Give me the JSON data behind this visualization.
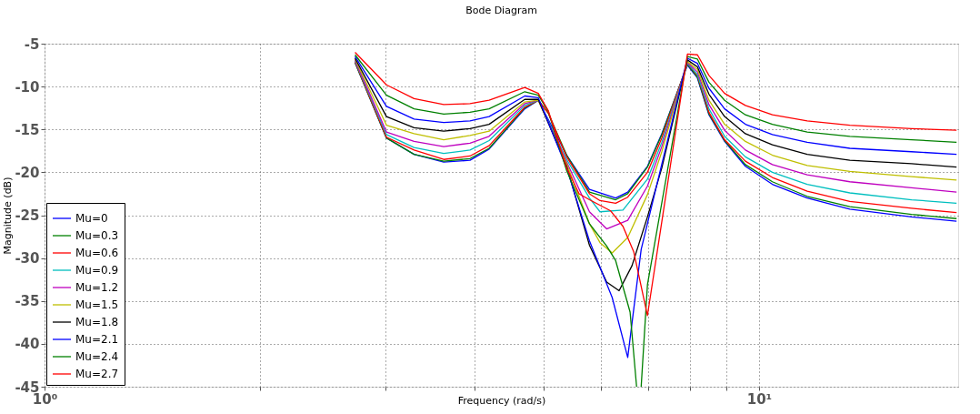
{
  "chart_data": {
    "type": "line",
    "title": "Bode Diagram",
    "xlabel": "Frequency  (rad/s)",
    "ylabel": "Magnitude (dB)",
    "log": "x",
    "grid": true,
    "legend": "bottom left",
    "line_style": "solid",
    "marker": "none",
    "xlim": [
      1,
      19
    ],
    "ylim": [
      -45,
      -5
    ],
    "xticks": [
      {
        "value": 1,
        "label": "10⁰"
      },
      {
        "value": 2,
        "label": null
      },
      {
        "value": 3,
        "label": null
      },
      {
        "value": 4,
        "label": null
      },
      {
        "value": 5,
        "label": null
      },
      {
        "value": 6,
        "label": null
      },
      {
        "value": 7,
        "label": null
      },
      {
        "value": 8,
        "label": null
      },
      {
        "value": 9,
        "label": null
      },
      {
        "value": 10,
        "label": "10¹"
      }
    ],
    "yticks": [
      -45,
      -40,
      -35,
      -30,
      -25,
      -20,
      -15,
      -10,
      -5
    ],
    "series": [
      {
        "name": "Mu=0",
        "color": "#0000ff",
        "x": [
          2.72,
          3.01,
          3.29,
          3.62,
          3.94,
          4.19,
          4.7,
          4.91,
          5.38,
          5.79,
          6.3,
          6.55,
          6.98,
          7.31,
          7.94,
          8.2,
          8.51,
          8.95,
          9.57,
          10.44,
          11.68,
          13.4,
          16.35,
          18.9
        ],
        "values": [
          -7.2,
          -16.0,
          -17.9,
          -18.8,
          -18.6,
          -17.3,
          -12.6,
          -11.6,
          -18.0,
          -22.0,
          -23.0,
          -22.3,
          -19.3,
          -15.5,
          -7.5,
          -9.0,
          -13.3,
          -16.4,
          -19.3,
          -21.4,
          -23.0,
          -24.3,
          -25.2,
          -25.7
        ]
      },
      {
        "name": "Mu=0.3",
        "color": "#008000",
        "x": [
          2.72,
          3.01,
          3.29,
          3.62,
          3.94,
          4.19,
          4.7,
          4.91,
          5.07,
          5.38,
          5.79,
          6.3,
          6.55,
          6.98,
          7.31,
          7.94,
          8.2,
          8.51,
          8.95,
          9.57,
          10.44,
          11.68,
          13.4,
          16.35,
          18.9
        ],
        "values": [
          -7.2,
          -16.0,
          -17.9,
          -18.7,
          -18.4,
          -17.2,
          -12.5,
          -11.6,
          -13.1,
          -18.0,
          -22.3,
          -23.2,
          -22.5,
          -19.4,
          -15.6,
          -7.4,
          -8.9,
          -13.2,
          -16.3,
          -19.1,
          -21.1,
          -22.8,
          -24.0,
          -24.9,
          -25.4
        ]
      },
      {
        "name": "Mu=0.6",
        "color": "#ff0000",
        "x": [
          2.72,
          3.01,
          3.29,
          3.62,
          3.94,
          4.19,
          4.7,
          4.91,
          5.07,
          5.38,
          5.79,
          5.99,
          6.3,
          6.55,
          6.98,
          7.31,
          7.94,
          8.2,
          8.51,
          8.95,
          9.57,
          10.44,
          11.68,
          13.4,
          16.35,
          18.9
        ],
        "values": [
          -7.1,
          -15.9,
          -17.4,
          -18.5,
          -18.1,
          -16.9,
          -12.4,
          -11.6,
          -13.1,
          -18.2,
          -22.5,
          -23.3,
          -23.6,
          -22.9,
          -20.0,
          -16.0,
          -7.3,
          -8.7,
          -13.0,
          -16.2,
          -18.7,
          -20.6,
          -22.2,
          -23.4,
          -24.2,
          -24.7
        ]
      },
      {
        "name": "Mu=0.9",
        "color": "#00bfbf",
        "x": [
          2.72,
          3.01,
          3.29,
          3.62,
          3.94,
          4.19,
          4.7,
          4.91,
          5.38,
          5.79,
          5.99,
          6.45,
          6.98,
          7.31,
          7.94,
          8.2,
          8.51,
          8.95,
          9.57,
          10.44,
          11.68,
          13.4,
          16.35,
          18.9
        ],
        "values": [
          -7.0,
          -15.6,
          -17.1,
          -17.8,
          -17.4,
          -16.3,
          -12.2,
          -11.6,
          -18.5,
          -23.0,
          -24.6,
          -24.4,
          -20.8,
          -16.5,
          -7.3,
          -8.6,
          -12.6,
          -15.8,
          -18.2,
          -20.0,
          -21.4,
          -22.4,
          -23.2,
          -23.6
        ]
      },
      {
        "name": "Mu=1.2",
        "color": "#bf00bf",
        "x": [
          2.72,
          3.01,
          3.29,
          3.62,
          3.94,
          4.19,
          4.7,
          4.91,
          5.38,
          5.79,
          6.12,
          6.55,
          6.98,
          7.31,
          7.94,
          8.2,
          8.51,
          8.95,
          9.57,
          10.44,
          11.68,
          13.4,
          16.35,
          18.9
        ],
        "values": [
          -6.9,
          -15.3,
          -16.4,
          -17.0,
          -16.6,
          -15.8,
          -12.0,
          -11.6,
          -18.8,
          -24.6,
          -26.6,
          -25.6,
          -21.6,
          -17.0,
          -7.2,
          -8.3,
          -12.1,
          -15.1,
          -17.4,
          -19.1,
          -20.3,
          -21.1,
          -21.8,
          -22.3
        ]
      },
      {
        "name": "Mu=1.5",
        "color": "#bfbf00",
        "x": [
          2.72,
          3.01,
          3.29,
          3.62,
          3.94,
          4.19,
          4.7,
          4.91,
          5.38,
          5.79,
          5.99,
          6.23,
          6.55,
          6.98,
          7.31,
          7.94,
          8.2,
          8.51,
          8.95,
          9.57,
          10.44,
          11.68,
          13.4,
          16.35,
          18.9
        ],
        "values": [
          -6.8,
          -14.5,
          -15.5,
          -16.2,
          -15.7,
          -15.2,
          -11.8,
          -11.6,
          -19.0,
          -26.0,
          -28.2,
          -29.4,
          -27.6,
          -22.6,
          -17.6,
          -7.1,
          -8.0,
          -11.6,
          -14.4,
          -16.4,
          -18.0,
          -19.2,
          -19.9,
          -20.5,
          -20.9
        ]
      },
      {
        "name": "Mu=1.8",
        "color": "#000000",
        "x": [
          2.72,
          3.01,
          3.29,
          3.62,
          3.94,
          4.19,
          4.7,
          4.91,
          5.38,
          5.79,
          6.12,
          6.37,
          6.64,
          6.98,
          7.31,
          7.94,
          8.2,
          8.51,
          8.95,
          9.57,
          10.44,
          11.68,
          13.4,
          16.35,
          18.9
        ],
        "values": [
          -6.7,
          -13.5,
          -14.8,
          -15.2,
          -14.9,
          -14.4,
          -11.5,
          -11.5,
          -19.3,
          -28.5,
          -32.8,
          -33.8,
          -30.9,
          -25.2,
          -19.5,
          -6.9,
          -7.7,
          -10.9,
          -13.5,
          -15.5,
          -16.8,
          -17.9,
          -18.6,
          -19.0,
          -19.4
        ]
      },
      {
        "name": "Mu=2.1",
        "color": "#0000ff",
        "x": [
          2.72,
          3.01,
          3.29,
          3.62,
          3.94,
          4.19,
          4.7,
          4.91,
          5.38,
          5.79,
          6.23,
          6.55,
          6.84,
          7.94,
          8.2,
          8.51,
          8.95,
          9.57,
          10.44,
          11.68,
          13.4,
          16.35,
          18.9
        ],
        "values": [
          -6.5,
          -12.3,
          -13.8,
          -14.2,
          -14.0,
          -13.5,
          -11.1,
          -11.3,
          -19.5,
          -28.0,
          -34.6,
          -41.6,
          -29.0,
          -6.7,
          -7.3,
          -10.2,
          -12.6,
          -14.4,
          -15.6,
          -16.5,
          -17.2,
          -17.6,
          -17.9
        ]
      },
      {
        "name": "Mu=2.4",
        "color": "#008000",
        "x": [
          2.72,
          3.01,
          3.29,
          3.62,
          3.94,
          4.19,
          4.7,
          4.91,
          5.07,
          5.38,
          5.79,
          6.12,
          6.3,
          6.6,
          6.74,
          6.79,
          6.84,
          6.98,
          7.94,
          8.2,
          8.51,
          8.95,
          9.57,
          10.44,
          11.68,
          13.4,
          16.35,
          18.9
        ],
        "values": [
          -6.3,
          -11.0,
          -12.6,
          -13.2,
          -13.0,
          -12.6,
          -10.6,
          -11.0,
          -12.9,
          -19.8,
          -26.0,
          -28.6,
          -30.3,
          -36.3,
          -45,
          null,
          -45,
          -33.1,
          -6.5,
          -6.8,
          -9.5,
          -11.6,
          -13.3,
          -14.4,
          -15.3,
          -15.8,
          -16.2,
          -16.5
        ]
      },
      {
        "name": "Mu=2.7",
        "color": "#ff0000",
        "x": [
          2.72,
          3.01,
          3.29,
          3.62,
          3.94,
          4.19,
          4.7,
          4.91,
          5.07,
          5.38,
          5.6,
          5.79,
          6.2,
          6.45,
          6.68,
          6.98,
          7.94,
          8.2,
          8.51,
          8.95,
          9.57,
          10.44,
          11.68,
          13.4,
          16.35,
          18.9
        ],
        "values": [
          -6.0,
          -9.8,
          -11.4,
          -12.1,
          -12.0,
          -11.6,
          -10.1,
          -10.8,
          -12.8,
          -19.5,
          -22.5,
          -23.2,
          -24.5,
          -26.3,
          -29.3,
          -36.7,
          -6.2,
          -6.3,
          -8.7,
          -10.8,
          -12.2,
          -13.3,
          -14.0,
          -14.5,
          -14.9,
          -15.1
        ]
      }
    ]
  }
}
